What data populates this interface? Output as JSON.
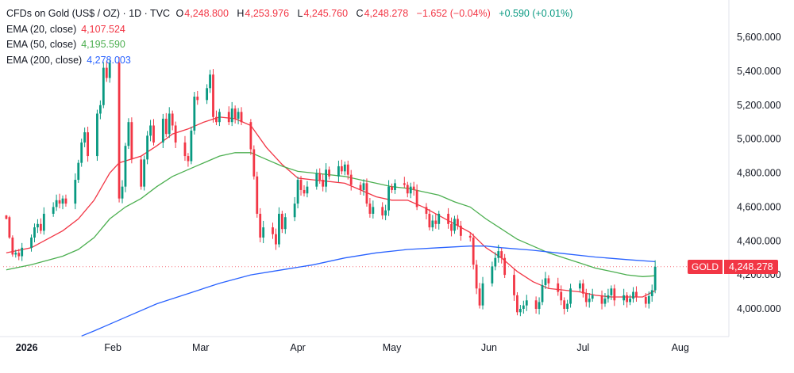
{
  "legend": {
    "symbol": "CFDs on Gold (US$ / OZ) · 1D · TVC",
    "open_key": "O",
    "open": "4,248.800",
    "high_key": "H",
    "high": "4,253.976",
    "low_key": "L",
    "low": "4,245.760",
    "close_key": "C",
    "close": "4,248.278",
    "change": "−1.652 (−0.04%)",
    "extra": "+0.590 (+0.01%)",
    "ema20_label": "EMA (20, close)",
    "ema20_value": "4,107.524",
    "ema50_label": "EMA (50, close)",
    "ema50_value": "4,195.590",
    "ema200_label": "EMA (200, close)",
    "ema200_value": "4,278.003"
  },
  "price_tag": {
    "name": "GOLD",
    "price": "4,248.278"
  },
  "colors": {
    "up": "#089981",
    "down": "#f23645",
    "ema20": "#f23645",
    "ema50": "#4caf50",
    "ema200": "#2962ff"
  },
  "chart_data": {
    "type": "line",
    "title": "CFDs on Gold (US$ / OZ) · 1D · TVC",
    "ylim": [
      3800,
      5700
    ],
    "y_ticks": [
      4000,
      4200,
      4400,
      4600,
      4800,
      5000,
      5200,
      5400,
      5600
    ],
    "y_tick_labels": [
      "4,000.000",
      "4,200.000",
      "4,400.000",
      "4,600.000",
      "4,800.000",
      "5,000.000",
      "5,200.000",
      "5,400.000",
      "5,600.000"
    ],
    "x_ticks": [
      {
        "day": 0,
        "label": "2026"
      },
      {
        "day": 31,
        "label": "Feb"
      },
      {
        "day": 59,
        "label": "Mar"
      },
      {
        "day": 90,
        "label": "Apr"
      },
      {
        "day": 120,
        "label": "May"
      },
      {
        "day": 151,
        "label": "Jun"
      },
      {
        "day": 181,
        "label": "Jul"
      },
      {
        "day": 212,
        "label": "Aug"
      }
    ],
    "xlim": [
      -4,
      226
    ],
    "grid": false,
    "last_price": 4248.278,
    "candles": [
      [
        -3,
        4550,
        4530
      ],
      [
        -2,
        4540,
        4420
      ],
      [
        -1,
        4420,
        4320
      ],
      [
        0,
        4320,
        4330
      ],
      [
        1,
        4330,
        4310
      ],
      [
        2,
        4310,
        4360
      ],
      [
        5,
        4360,
        4420
      ],
      [
        6,
        4420,
        4480
      ],
      [
        7,
        4480,
        4500
      ],
      [
        8,
        4500,
        4460
      ],
      [
        9,
        4460,
        4560
      ],
      [
        12,
        4560,
        4600
      ],
      [
        13,
        4600,
        4640
      ],
      [
        14,
        4640,
        4620
      ],
      [
        15,
        4620,
        4650
      ],
      [
        16,
        4650,
        4620
      ],
      [
        19,
        4620,
        4760
      ],
      [
        20,
        4760,
        4860
      ],
      [
        21,
        4860,
        4980
      ],
      [
        22,
        4980,
        5040
      ],
      [
        23,
        5040,
        4900
      ],
      [
        26,
        4900,
        5150
      ],
      [
        27,
        5150,
        5200
      ],
      [
        28,
        5200,
        5420
      ],
      [
        29,
        5420,
        5360
      ],
      [
        30,
        5360,
        5450
      ],
      [
        33,
        5450,
        4650
      ],
      [
        34,
        4650,
        4720
      ],
      [
        35,
        4720,
        4960
      ],
      [
        36,
        4960,
        5100
      ],
      [
        37,
        5100,
        4880
      ],
      [
        40,
        4880,
        4720
      ],
      [
        41,
        4720,
        4880
      ],
      [
        42,
        4880,
        5020
      ],
      [
        43,
        5020,
        5080
      ],
      [
        44,
        5080,
        4980
      ],
      [
        47,
        4980,
        5120
      ],
      [
        48,
        5120,
        5030
      ],
      [
        49,
        5030,
        5150
      ],
      [
        50,
        5150,
        5080
      ],
      [
        51,
        5080,
        4980
      ],
      [
        54,
        4980,
        4900
      ],
      [
        55,
        4900,
        4870
      ],
      [
        56,
        4870,
        5050
      ],
      [
        57,
        5050,
        5250
      ],
      [
        58,
        5250,
        5230
      ],
      [
        61,
        5230,
        5300
      ],
      [
        62,
        5300,
        5380
      ],
      [
        63,
        5380,
        5130
      ],
      [
        64,
        5130,
        5100
      ],
      [
        65,
        5100,
        5160
      ],
      [
        68,
        5160,
        5100
      ],
      [
        69,
        5100,
        5180
      ],
      [
        70,
        5180,
        5120
      ],
      [
        71,
        5120,
        5160
      ],
      [
        72,
        5160,
        5100
      ],
      [
        75,
        5100,
        4940
      ],
      [
        76,
        4940,
        4780
      ],
      [
        77,
        4780,
        4560
      ],
      [
        78,
        4560,
        4420
      ],
      [
        79,
        4420,
        4480
      ],
      [
        82,
        4480,
        4440
      ],
      [
        83,
        4440,
        4380
      ],
      [
        84,
        4380,
        4560
      ],
      [
        85,
        4560,
        4470
      ],
      [
        86,
        4470,
        4540
      ],
      [
        89,
        4540,
        4620
      ],
      [
        90,
        4620,
        4760
      ],
      [
        91,
        4760,
        4700
      ],
      [
        92,
        4700,
        4680
      ],
      [
        93,
        4680,
        4720
      ],
      [
        96,
        4720,
        4800
      ],
      [
        97,
        4800,
        4760
      ],
      [
        98,
        4760,
        4720
      ],
      [
        99,
        4720,
        4820
      ],
      [
        100,
        4820,
        4780
      ],
      [
        103,
        4780,
        4840
      ],
      [
        104,
        4840,
        4810
      ],
      [
        105,
        4810,
        4850
      ],
      [
        106,
        4850,
        4790
      ],
      [
        107,
        4790,
        4730
      ],
      [
        110,
        4730,
        4700
      ],
      [
        111,
        4700,
        4740
      ],
      [
        112,
        4740,
        4620
      ],
      [
        113,
        4620,
        4560
      ],
      [
        114,
        4560,
        4600
      ],
      [
        117,
        4600,
        4550
      ],
      [
        118,
        4550,
        4580
      ],
      [
        119,
        4580,
        4720
      ],
      [
        120,
        4720,
        4700
      ],
      [
        121,
        4700,
        4740
      ],
      [
        124,
        4740,
        4730
      ],
      [
        125,
        4730,
        4680
      ],
      [
        126,
        4680,
        4720
      ],
      [
        127,
        4720,
        4700
      ],
      [
        128,
        4700,
        4600
      ],
      [
        131,
        4600,
        4560
      ],
      [
        132,
        4560,
        4480
      ],
      [
        133,
        4480,
        4520
      ],
      [
        134,
        4520,
        4500
      ],
      [
        135,
        4500,
        4560
      ],
      [
        138,
        4560,
        4500
      ],
      [
        139,
        4500,
        4460
      ],
      [
        140,
        4460,
        4530
      ],
      [
        141,
        4530,
        4490
      ],
      [
        142,
        4490,
        4430
      ],
      [
        145,
        4430,
        4420
      ],
      [
        146,
        4420,
        4260
      ],
      [
        147,
        4260,
        4120
      ],
      [
        148,
        4120,
        4020
      ],
      [
        149,
        4020,
        4150
      ],
      [
        152,
        4150,
        4250
      ],
      [
        153,
        4250,
        4300
      ],
      [
        154,
        4300,
        4340
      ],
      [
        155,
        4340,
        4300
      ],
      [
        156,
        4300,
        4200
      ],
      [
        159,
        4200,
        4080
      ],
      [
        160,
        4080,
        3980
      ],
      [
        161,
        3980,
        4000
      ],
      [
        162,
        4000,
        4020
      ],
      [
        163,
        4020,
        4050
      ],
      [
        166,
        4050,
        4000
      ],
      [
        167,
        4000,
        4040
      ],
      [
        168,
        4040,
        4140
      ],
      [
        169,
        4140,
        4180
      ],
      [
        170,
        4180,
        4150
      ],
      [
        173,
        4150,
        4100
      ],
      [
        174,
        4100,
        4050
      ],
      [
        175,
        4050,
        4000
      ],
      [
        176,
        4000,
        4030
      ],
      [
        177,
        4030,
        4120
      ],
      [
        180,
        4120,
        4150
      ],
      [
        181,
        4150,
        4090
      ],
      [
        182,
        4090,
        4040
      ],
      [
        183,
        4040,
        4060
      ],
      [
        184,
        4060,
        4080
      ],
      [
        187,
        4080,
        4030
      ],
      [
        188,
        4030,
        4060
      ],
      [
        189,
        4060,
        4080
      ],
      [
        190,
        4080,
        4120
      ],
      [
        191,
        4120,
        4050
      ],
      [
        194,
        4050,
        4080
      ],
      [
        195,
        4080,
        4040
      ],
      [
        196,
        4040,
        4060
      ],
      [
        197,
        4060,
        4100
      ],
      [
        198,
        4100,
        4070
      ],
      [
        201,
        4070,
        4030
      ],
      [
        202,
        4030,
        4075
      ],
      [
        203,
        4075,
        4110
      ],
      [
        204,
        4110,
        4248
      ]
    ],
    "series": [
      {
        "name": "EMA (20, close)",
        "color": "#f23645",
        "points": [
          [
            -3,
            4330
          ],
          [
            5,
            4360
          ],
          [
            15,
            4460
          ],
          [
            20,
            4530
          ],
          [
            25,
            4640
          ],
          [
            30,
            4800
          ],
          [
            33,
            4860
          ],
          [
            40,
            4900
          ],
          [
            45,
            4960
          ],
          [
            50,
            5030
          ],
          [
            55,
            5060
          ],
          [
            60,
            5100
          ],
          [
            65,
            5130
          ],
          [
            70,
            5120
          ],
          [
            75,
            5080
          ],
          [
            80,
            4950
          ],
          [
            85,
            4850
          ],
          [
            90,
            4770
          ],
          [
            95,
            4760
          ],
          [
            100,
            4750
          ],
          [
            105,
            4740
          ],
          [
            110,
            4700
          ],
          [
            115,
            4660
          ],
          [
            120,
            4640
          ],
          [
            125,
            4640
          ],
          [
            130,
            4600
          ],
          [
            135,
            4550
          ],
          [
            140,
            4500
          ],
          [
            145,
            4450
          ],
          [
            150,
            4360
          ],
          [
            155,
            4300
          ],
          [
            160,
            4220
          ],
          [
            165,
            4160
          ],
          [
            170,
            4120
          ],
          [
            175,
            4110
          ],
          [
            180,
            4100
          ],
          [
            185,
            4080
          ],
          [
            190,
            4070
          ],
          [
            195,
            4070
          ],
          [
            200,
            4070
          ],
          [
            204,
            4107
          ]
        ]
      },
      {
        "name": "EMA (50, close)",
        "color": "#4caf50",
        "points": [
          [
            -3,
            4230
          ],
          [
            5,
            4260
          ],
          [
            15,
            4310
          ],
          [
            20,
            4350
          ],
          [
            25,
            4420
          ],
          [
            30,
            4530
          ],
          [
            35,
            4600
          ],
          [
            40,
            4650
          ],
          [
            45,
            4720
          ],
          [
            50,
            4780
          ],
          [
            55,
            4820
          ],
          [
            60,
            4860
          ],
          [
            65,
            4900
          ],
          [
            70,
            4920
          ],
          [
            75,
            4920
          ],
          [
            80,
            4880
          ],
          [
            85,
            4840
          ],
          [
            90,
            4810
          ],
          [
            95,
            4800
          ],
          [
            100,
            4790
          ],
          [
            105,
            4780
          ],
          [
            110,
            4760
          ],
          [
            115,
            4740
          ],
          [
            120,
            4720
          ],
          [
            125,
            4710
          ],
          [
            130,
            4690
          ],
          [
            135,
            4670
          ],
          [
            140,
            4630
          ],
          [
            145,
            4600
          ],
          [
            150,
            4530
          ],
          [
            155,
            4470
          ],
          [
            160,
            4410
          ],
          [
            165,
            4370
          ],
          [
            170,
            4330
          ],
          [
            175,
            4300
          ],
          [
            180,
            4270
          ],
          [
            185,
            4240
          ],
          [
            190,
            4220
          ],
          [
            195,
            4200
          ],
          [
            200,
            4190
          ],
          [
            204,
            4195
          ]
        ]
      },
      {
        "name": "EMA (200, close)",
        "color": "#2962ff",
        "points": [
          [
            21,
            3840
          ],
          [
            25,
            3870
          ],
          [
            35,
            3950
          ],
          [
            45,
            4030
          ],
          [
            55,
            4090
          ],
          [
            65,
            4150
          ],
          [
            75,
            4200
          ],
          [
            85,
            4230
          ],
          [
            95,
            4260
          ],
          [
            105,
            4300
          ],
          [
            115,
            4330
          ],
          [
            125,
            4350
          ],
          [
            135,
            4360
          ],
          [
            145,
            4370
          ],
          [
            150,
            4370
          ],
          [
            155,
            4360
          ],
          [
            165,
            4345
          ],
          [
            175,
            4325
          ],
          [
            185,
            4305
          ],
          [
            195,
            4290
          ],
          [
            204,
            4278
          ]
        ]
      }
    ]
  }
}
